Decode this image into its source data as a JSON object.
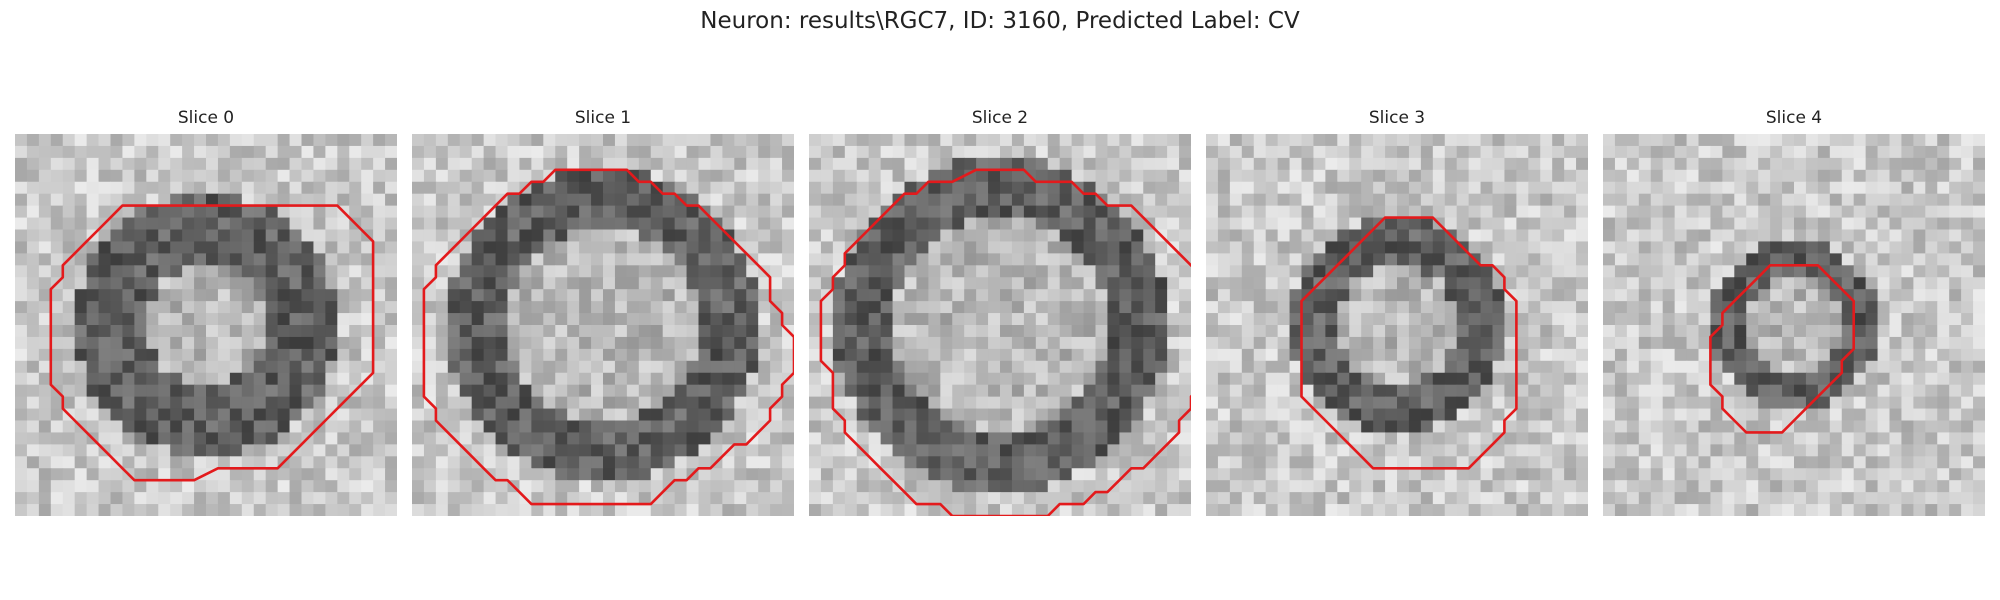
{
  "figure": {
    "title": "Neuron: results\\RGC7, ID: 3160, Predicted Label: CV"
  },
  "contour_color": "#e31a1c",
  "panels": [
    {
      "title": "Slice 0",
      "ring": [
        5,
        11
      ],
      "contour": [
        [
          6,
          6
        ],
        [
          8,
          6
        ],
        [
          9,
          6
        ],
        [
          11,
          6
        ],
        [
          12,
          7
        ],
        [
          13,
          8
        ],
        [
          14,
          9
        ],
        [
          14,
          10
        ],
        [
          14,
          11
        ],
        [
          14,
          12
        ],
        [
          14,
          13
        ],
        [
          14,
          14
        ],
        [
          14,
          15
        ],
        [
          14,
          16
        ],
        [
          14,
          17
        ],
        [
          14,
          18
        ],
        [
          14,
          19
        ],
        [
          14,
          20
        ],
        [
          13,
          21
        ],
        [
          13,
          21
        ],
        [
          12,
          22
        ],
        [
          11,
          23
        ],
        [
          10,
          24
        ],
        [
          9,
          25
        ],
        [
          8,
          26
        ],
        [
          7,
          27
        ],
        [
          6,
          28
        ],
        [
          4,
          28
        ],
        [
          2,
          28
        ],
        [
          1,
          28
        ],
        [
          -1,
          29
        ],
        [
          -3,
          29
        ],
        [
          -5,
          29
        ],
        [
          -6,
          29
        ],
        [
          -7,
          28
        ],
        [
          -8,
          27
        ],
        [
          -9,
          26
        ],
        [
          -10,
          25
        ],
        [
          -11,
          24
        ],
        [
          -12,
          23
        ],
        [
          -12,
          22
        ],
        [
          -13,
          21
        ],
        [
          -13,
          20
        ],
        [
          -13,
          19
        ],
        [
          -13,
          18
        ],
        [
          -13,
          17
        ],
        [
          -13,
          16
        ],
        [
          -13,
          15
        ],
        [
          -13,
          14
        ],
        [
          -13,
          13
        ],
        [
          -12,
          12
        ],
        [
          -12,
          11
        ],
        [
          -11,
          10
        ],
        [
          -10,
          9
        ],
        [
          -9,
          8
        ],
        [
          -8,
          7
        ],
        [
          -7,
          6
        ],
        [
          -6,
          6
        ],
        [
          -4,
          6
        ],
        [
          -2,
          6
        ],
        [
          0,
          6
        ],
        [
          2,
          6
        ],
        [
          4,
          6
        ],
        [
          6,
          6
        ]
      ]
    },
    {
      "title": "Slice 1",
      "ring": [
        8,
        13
      ],
      "contour": [
        [
          1,
          3
        ],
        [
          2,
          3
        ],
        [
          3,
          4
        ],
        [
          4,
          4
        ],
        [
          5,
          5
        ],
        [
          6,
          5
        ],
        [
          7,
          6
        ],
        [
          8,
          6
        ],
        [
          9,
          7
        ],
        [
          10,
          8
        ],
        [
          11,
          9
        ],
        [
          12,
          10
        ],
        [
          13,
          11
        ],
        [
          14,
          12
        ],
        [
          14,
          14
        ],
        [
          15,
          15
        ],
        [
          15,
          16
        ],
        [
          16,
          17
        ],
        [
          16,
          18
        ],
        [
          16,
          19
        ],
        [
          16,
          20
        ],
        [
          15,
          21
        ],
        [
          15,
          22
        ],
        [
          14,
          23
        ],
        [
          14,
          24
        ],
        [
          13,
          25
        ],
        [
          12,
          26
        ],
        [
          11,
          26
        ],
        [
          10,
          27
        ],
        [
          9,
          28
        ],
        [
          8,
          28
        ],
        [
          7,
          29
        ],
        [
          6,
          29
        ],
        [
          5,
          30
        ],
        [
          4,
          31
        ],
        [
          3,
          31
        ],
        [
          1,
          31
        ],
        [
          -1,
          31
        ],
        [
          -3,
          31
        ],
        [
          -4,
          31
        ],
        [
          -6,
          31
        ],
        [
          -7,
          30
        ],
        [
          -8,
          29
        ],
        [
          -9,
          29
        ],
        [
          -10,
          28
        ],
        [
          -11,
          27
        ],
        [
          -12,
          26
        ],
        [
          -13,
          25
        ],
        [
          -14,
          24
        ],
        [
          -14,
          23
        ],
        [
          -15,
          22
        ],
        [
          -15,
          21
        ],
        [
          -15,
          19
        ],
        [
          -15,
          17
        ],
        [
          -15,
          15
        ],
        [
          -15,
          13
        ],
        [
          -14,
          12
        ],
        [
          -14,
          11
        ],
        [
          -13,
          10
        ],
        [
          -12,
          9
        ],
        [
          -11,
          8
        ],
        [
          -10,
          7
        ],
        [
          -9,
          6
        ],
        [
          -8,
          5
        ],
        [
          -7,
          5
        ],
        [
          -6,
          4
        ],
        [
          -5,
          4
        ],
        [
          -4,
          3
        ],
        [
          -3,
          3
        ],
        [
          -1,
          3
        ],
        [
          1,
          3
        ]
      ]
    },
    {
      "title": "Slice 2",
      "ring": [
        9,
        14
      ],
      "contour": [
        [
          0,
          3
        ],
        [
          2,
          3
        ],
        [
          3,
          4
        ],
        [
          4,
          4
        ],
        [
          6,
          4
        ],
        [
          7,
          5
        ],
        [
          8,
          5
        ],
        [
          9,
          6
        ],
        [
          10,
          6
        ],
        [
          11,
          6
        ],
        [
          12,
          7
        ],
        [
          13,
          8
        ],
        [
          14,
          9
        ],
        [
          15,
          10
        ],
        [
          16,
          11
        ],
        [
          17,
          12
        ],
        [
          17,
          13
        ],
        [
          17,
          14
        ],
        [
          17,
          16
        ],
        [
          17,
          18
        ],
        [
          17,
          20
        ],
        [
          17,
          21
        ],
        [
          16,
          22
        ],
        [
          16,
          23
        ],
        [
          15,
          24
        ],
        [
          15,
          25
        ],
        [
          14,
          26
        ],
        [
          13,
          27
        ],
        [
          12,
          28
        ],
        [
          11,
          28
        ],
        [
          10,
          29
        ],
        [
          9,
          30
        ],
        [
          8,
          30
        ],
        [
          7,
          31
        ],
        [
          6,
          31
        ],
        [
          5,
          31
        ],
        [
          4,
          32
        ],
        [
          2,
          32
        ],
        [
          0,
          32
        ],
        [
          -2,
          32
        ],
        [
          -4,
          32
        ],
        [
          -5,
          31
        ],
        [
          -6,
          31
        ],
        [
          -7,
          31
        ],
        [
          -8,
          30
        ],
        [
          -9,
          29
        ],
        [
          -10,
          28
        ],
        [
          -11,
          27
        ],
        [
          -12,
          26
        ],
        [
          -13,
          25
        ],
        [
          -13,
          24
        ],
        [
          -14,
          23
        ],
        [
          -14,
          22
        ],
        [
          -14,
          21
        ],
        [
          -14,
          20
        ],
        [
          -15,
          19
        ],
        [
          -15,
          17
        ],
        [
          -15,
          15
        ],
        [
          -15,
          14
        ],
        [
          -14,
          13
        ],
        [
          -14,
          12
        ],
        [
          -13,
          11
        ],
        [
          -13,
          10
        ],
        [
          -12,
          9
        ],
        [
          -11,
          8
        ],
        [
          -10,
          7
        ],
        [
          -9,
          6
        ],
        [
          -8,
          5
        ],
        [
          -7,
          5
        ],
        [
          -6,
          4
        ],
        [
          -4,
          4
        ],
        [
          -2,
          3
        ],
        [
          0,
          3
        ]
      ]
    },
    {
      "title": "Slice 3",
      "ring": [
        5,
        9
      ],
      "contour": [
        [
          0,
          7
        ],
        [
          2,
          7
        ],
        [
          3,
          7
        ],
        [
          4,
          8
        ],
        [
          5,
          9
        ],
        [
          6,
          10
        ],
        [
          7,
          11
        ],
        [
          8,
          11
        ],
        [
          9,
          12
        ],
        [
          9,
          13
        ],
        [
          10,
          14
        ],
        [
          10,
          16
        ],
        [
          10,
          18
        ],
        [
          10,
          20
        ],
        [
          10,
          22
        ],
        [
          10,
          23
        ],
        [
          9,
          24
        ],
        [
          9,
          25
        ],
        [
          8,
          26
        ],
        [
          7,
          27
        ],
        [
          6,
          28
        ],
        [
          4,
          28
        ],
        [
          2,
          28
        ],
        [
          0,
          28
        ],
        [
          -2,
          28
        ],
        [
          -3,
          27
        ],
        [
          -4,
          26
        ],
        [
          -5,
          25
        ],
        [
          -6,
          24
        ],
        [
          -7,
          23
        ],
        [
          -8,
          22
        ],
        [
          -8,
          21
        ],
        [
          -8,
          19
        ],
        [
          -8,
          17
        ],
        [
          -8,
          15
        ],
        [
          -8,
          14
        ],
        [
          -7,
          13
        ],
        [
          -6,
          12
        ],
        [
          -5,
          11
        ],
        [
          -4,
          10
        ],
        [
          -3,
          9
        ],
        [
          -2,
          8
        ],
        [
          -1,
          7
        ],
        [
          0,
          7
        ]
      ]
    },
    {
      "title": "Slice 4",
      "ring": [
        4,
        7
      ],
      "contour": [
        [
          0,
          11
        ],
        [
          2,
          11
        ],
        [
          3,
          12
        ],
        [
          4,
          13
        ],
        [
          5,
          14
        ],
        [
          5,
          16
        ],
        [
          5,
          18
        ],
        [
          4,
          19
        ],
        [
          4,
          20
        ],
        [
          3,
          21
        ],
        [
          2,
          22
        ],
        [
          1,
          23
        ],
        [
          0,
          24
        ],
        [
          -1,
          25
        ],
        [
          -2,
          25
        ],
        [
          -4,
          25
        ],
        [
          -5,
          24
        ],
        [
          -6,
          23
        ],
        [
          -6,
          22
        ],
        [
          -7,
          21
        ],
        [
          -7,
          19
        ],
        [
          -7,
          17
        ],
        [
          -6,
          16
        ],
        [
          -6,
          15
        ],
        [
          -5,
          14
        ],
        [
          -4,
          13
        ],
        [
          -3,
          12
        ],
        [
          -2,
          11
        ],
        [
          0,
          11
        ]
      ]
    }
  ]
}
